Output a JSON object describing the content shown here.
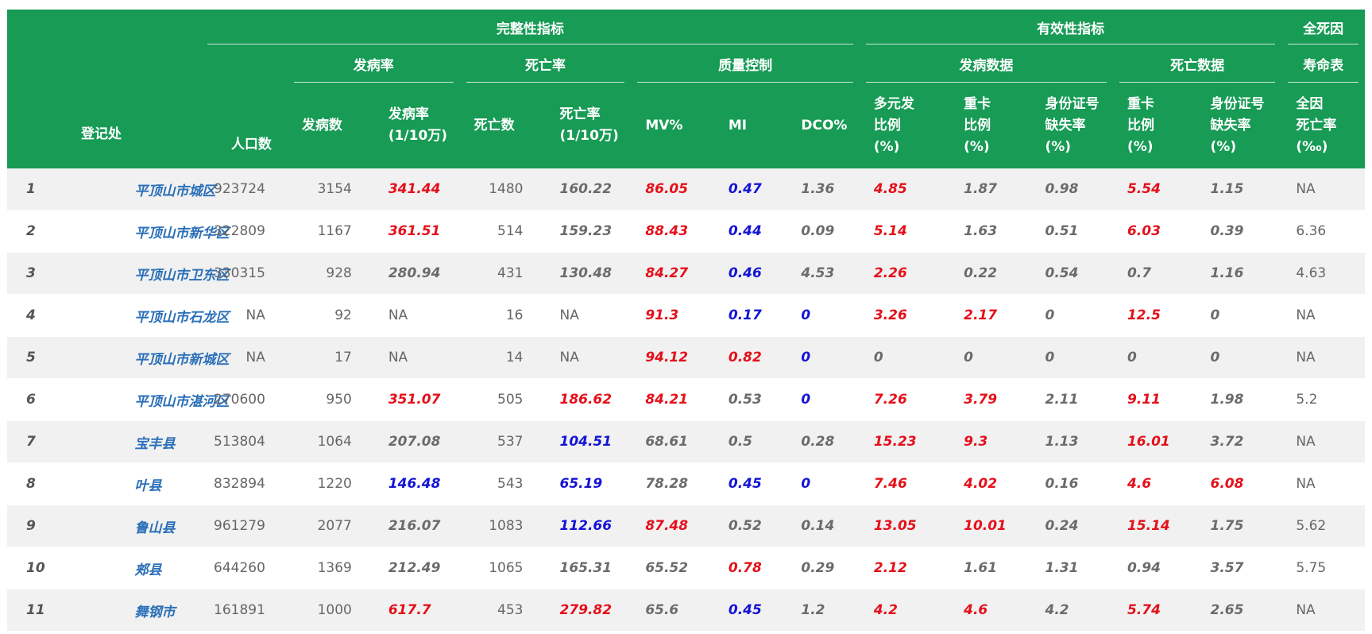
{
  "headers": {
    "region": "登记处",
    "completeness": "完整性指标",
    "validity": "有效性指标",
    "all_death": "全死因",
    "incidence_grp": "发病率",
    "mortality_grp": "死亡率",
    "qc_grp": "质量控制",
    "inc_data_grp": "发病数据",
    "death_data_grp": "死亡数据",
    "life_table": "寿命表",
    "cols": [
      [
        "人口数"
      ],
      [
        "发病数"
      ],
      [
        "发病率",
        "(1/10万)"
      ],
      [
        "死亡数"
      ],
      [
        "死亡率",
        "(1/10万)"
      ],
      [
        "MV%"
      ],
      [
        "MI"
      ],
      [
        "DCO%"
      ],
      [
        "多元发",
        "比例",
        "(%)"
      ],
      [
        "重卡",
        "比例",
        "(%)"
      ],
      [
        "身份证号",
        "缺失率",
        "(%)"
      ],
      [
        "重卡",
        "比例",
        "(%)"
      ],
      [
        "身份证号",
        "缺失率",
        "(%)"
      ],
      [
        "全因",
        "死亡率",
        "(‰)"
      ]
    ]
  },
  "colors": {
    "header_bg": "#179b55",
    "red": "#e4101a",
    "blue": "#1414d6",
    "link": "#2a6fb8"
  },
  "rows": [
    {
      "idx": "1",
      "name": "平顶山市城区",
      "cells": [
        [
          "923724",
          ""
        ],
        [
          "3154",
          ""
        ],
        [
          "341.44",
          "red"
        ],
        [
          "1480",
          ""
        ],
        [
          "160.22",
          "gray"
        ],
        [
          "86.05",
          "red"
        ],
        [
          "0.47",
          "blue"
        ],
        [
          "1.36",
          "gray"
        ],
        [
          "4.85",
          "red"
        ],
        [
          "1.87",
          "gray"
        ],
        [
          "0.98",
          "gray"
        ],
        [
          "5.54",
          "red"
        ],
        [
          "1.15",
          "gray"
        ],
        [
          "NA",
          "plain"
        ]
      ]
    },
    {
      "idx": "2",
      "name": "平顶山市新华区",
      "cells": [
        [
          "322809",
          ""
        ],
        [
          "1167",
          ""
        ],
        [
          "361.51",
          "red"
        ],
        [
          "514",
          ""
        ],
        [
          "159.23",
          "gray"
        ],
        [
          "88.43",
          "red"
        ],
        [
          "0.44",
          "blue"
        ],
        [
          "0.09",
          "gray"
        ],
        [
          "5.14",
          "red"
        ],
        [
          "1.63",
          "gray"
        ],
        [
          "0.51",
          "gray"
        ],
        [
          "6.03",
          "red"
        ],
        [
          "0.39",
          "gray"
        ],
        [
          "6.36",
          "plain"
        ]
      ]
    },
    {
      "idx": "3",
      "name": "平顶山市卫东区",
      "cells": [
        [
          "330315",
          ""
        ],
        [
          "928",
          ""
        ],
        [
          "280.94",
          "gray"
        ],
        [
          "431",
          ""
        ],
        [
          "130.48",
          "gray"
        ],
        [
          "84.27",
          "red"
        ],
        [
          "0.46",
          "blue"
        ],
        [
          "4.53",
          "gray"
        ],
        [
          "2.26",
          "red"
        ],
        [
          "0.22",
          "gray"
        ],
        [
          "0.54",
          "gray"
        ],
        [
          "0.7",
          "gray"
        ],
        [
          "1.16",
          "gray"
        ],
        [
          "4.63",
          "plain"
        ]
      ]
    },
    {
      "idx": "4",
      "name": "平顶山市石龙区",
      "cells": [
        [
          "NA",
          ""
        ],
        [
          "92",
          ""
        ],
        [
          "NA",
          "plain"
        ],
        [
          "16",
          ""
        ],
        [
          "NA",
          "plain"
        ],
        [
          "91.3",
          "red"
        ],
        [
          "0.17",
          "blue"
        ],
        [
          "0",
          "blue"
        ],
        [
          "3.26",
          "red"
        ],
        [
          "2.17",
          "red"
        ],
        [
          "0",
          "gray"
        ],
        [
          "12.5",
          "red"
        ],
        [
          "0",
          "gray"
        ],
        [
          "NA",
          "plain"
        ]
      ]
    },
    {
      "idx": "5",
      "name": "平顶山市新城区",
      "cells": [
        [
          "NA",
          ""
        ],
        [
          "17",
          ""
        ],
        [
          "NA",
          "plain"
        ],
        [
          "14",
          ""
        ],
        [
          "NA",
          "plain"
        ],
        [
          "94.12",
          "red"
        ],
        [
          "0.82",
          "red"
        ],
        [
          "0",
          "blue"
        ],
        [
          "0",
          "gray"
        ],
        [
          "0",
          "gray"
        ],
        [
          "0",
          "gray"
        ],
        [
          "0",
          "gray"
        ],
        [
          "0",
          "gray"
        ],
        [
          "NA",
          "plain"
        ]
      ]
    },
    {
      "idx": "6",
      "name": "平顶山市湛河区",
      "cells": [
        [
          "270600",
          ""
        ],
        [
          "950",
          ""
        ],
        [
          "351.07",
          "red"
        ],
        [
          "505",
          ""
        ],
        [
          "186.62",
          "red"
        ],
        [
          "84.21",
          "red"
        ],
        [
          "0.53",
          "gray"
        ],
        [
          "0",
          "blue"
        ],
        [
          "7.26",
          "red"
        ],
        [
          "3.79",
          "red"
        ],
        [
          "2.11",
          "gray"
        ],
        [
          "9.11",
          "red"
        ],
        [
          "1.98",
          "gray"
        ],
        [
          "5.2",
          "plain"
        ]
      ]
    },
    {
      "idx": "7",
      "name": "宝丰县",
      "cells": [
        [
          "513804",
          ""
        ],
        [
          "1064",
          ""
        ],
        [
          "207.08",
          "gray"
        ],
        [
          "537",
          ""
        ],
        [
          "104.51",
          "blue"
        ],
        [
          "68.61",
          "gray"
        ],
        [
          "0.5",
          "gray"
        ],
        [
          "0.28",
          "gray"
        ],
        [
          "15.23",
          "red"
        ],
        [
          "9.3",
          "red"
        ],
        [
          "1.13",
          "gray"
        ],
        [
          "16.01",
          "red"
        ],
        [
          "3.72",
          "gray"
        ],
        [
          "NA",
          "plain"
        ]
      ]
    },
    {
      "idx": "8",
      "name": "叶县",
      "cells": [
        [
          "832894",
          ""
        ],
        [
          "1220",
          ""
        ],
        [
          "146.48",
          "blue"
        ],
        [
          "543",
          ""
        ],
        [
          "65.19",
          "blue"
        ],
        [
          "78.28",
          "gray"
        ],
        [
          "0.45",
          "blue"
        ],
        [
          "0",
          "blue"
        ],
        [
          "7.46",
          "red"
        ],
        [
          "4.02",
          "red"
        ],
        [
          "0.16",
          "gray"
        ],
        [
          "4.6",
          "red"
        ],
        [
          "6.08",
          "red"
        ],
        [
          "NA",
          "plain"
        ]
      ]
    },
    {
      "idx": "9",
      "name": "鲁山县",
      "cells": [
        [
          "961279",
          ""
        ],
        [
          "2077",
          ""
        ],
        [
          "216.07",
          "gray"
        ],
        [
          "1083",
          ""
        ],
        [
          "112.66",
          "blue"
        ],
        [
          "87.48",
          "red"
        ],
        [
          "0.52",
          "gray"
        ],
        [
          "0.14",
          "gray"
        ],
        [
          "13.05",
          "red"
        ],
        [
          "10.01",
          "red"
        ],
        [
          "0.24",
          "gray"
        ],
        [
          "15.14",
          "red"
        ],
        [
          "1.75",
          "gray"
        ],
        [
          "5.62",
          "plain"
        ]
      ]
    },
    {
      "idx": "10",
      "name": "郏县",
      "cells": [
        [
          "644260",
          ""
        ],
        [
          "1369",
          ""
        ],
        [
          "212.49",
          "gray"
        ],
        [
          "1065",
          ""
        ],
        [
          "165.31",
          "gray"
        ],
        [
          "65.52",
          "gray"
        ],
        [
          "0.78",
          "red"
        ],
        [
          "0.29",
          "gray"
        ],
        [
          "2.12",
          "red"
        ],
        [
          "1.61",
          "gray"
        ],
        [
          "1.31",
          "gray"
        ],
        [
          "0.94",
          "gray"
        ],
        [
          "3.57",
          "gray"
        ],
        [
          "5.75",
          "plain"
        ]
      ]
    },
    {
      "idx": "11",
      "name": "舞钢市",
      "cells": [
        [
          "161891",
          ""
        ],
        [
          "1000",
          ""
        ],
        [
          "617.7",
          "red"
        ],
        [
          "453",
          ""
        ],
        [
          "279.82",
          "red"
        ],
        [
          "65.6",
          "gray"
        ],
        [
          "0.45",
          "blue"
        ],
        [
          "1.2",
          "gray"
        ],
        [
          "4.2",
          "red"
        ],
        [
          "4.6",
          "red"
        ],
        [
          "4.2",
          "gray"
        ],
        [
          "5.74",
          "red"
        ],
        [
          "2.65",
          "gray"
        ],
        [
          "NA",
          "plain"
        ]
      ]
    }
  ]
}
